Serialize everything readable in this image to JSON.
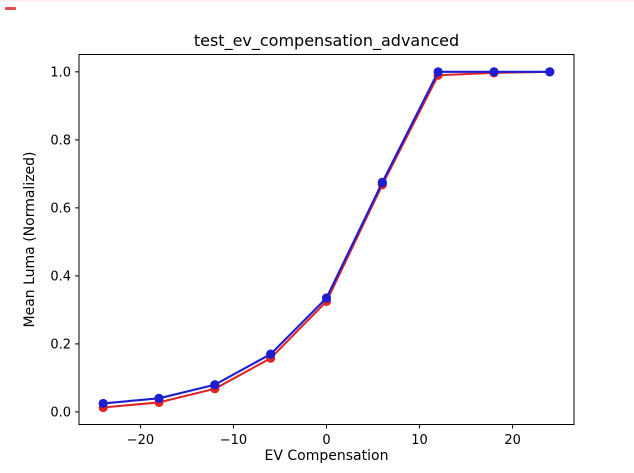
{
  "figure": {
    "background_color": "#ffffff",
    "top_left_artifact_color": "#e03a3a"
  },
  "chart_data": {
    "type": "line",
    "title": "test_ev_compensation_advanced",
    "xlabel": "EV Compensation",
    "ylabel": "Mean Luma (Normalized)",
    "x": [
      -24,
      -18,
      -12,
      -6,
      0,
      6,
      12,
      18,
      24
    ],
    "series": [
      {
        "name": "red",
        "color": "#e02525",
        "marker": "circle",
        "values": [
          0.013,
          0.028,
          0.068,
          0.158,
          0.325,
          0.668,
          0.99,
          0.997,
          1.0
        ]
      },
      {
        "name": "blue",
        "color": "#1c1ed2",
        "marker": "circle",
        "values": [
          0.025,
          0.04,
          0.08,
          0.17,
          0.335,
          0.675,
          1.0,
          1.0,
          1.0
        ]
      }
    ],
    "xlim": [
      -26.6,
      26.6
    ],
    "ylim": [
      -0.037,
      1.051
    ],
    "xticks": {
      "values": [
        -20,
        -10,
        0,
        10,
        20
      ],
      "labels": [
        "−20",
        "−10",
        "0",
        "10",
        "20"
      ]
    },
    "yticks": {
      "values": [
        0.0,
        0.2,
        0.4,
        0.6,
        0.8,
        1.0
      ],
      "labels": [
        "0.0",
        "0.2",
        "0.4",
        "0.6",
        "0.8",
        "1.0"
      ]
    },
    "grid": false,
    "legend": "none",
    "axes_border_color": "#000000"
  }
}
